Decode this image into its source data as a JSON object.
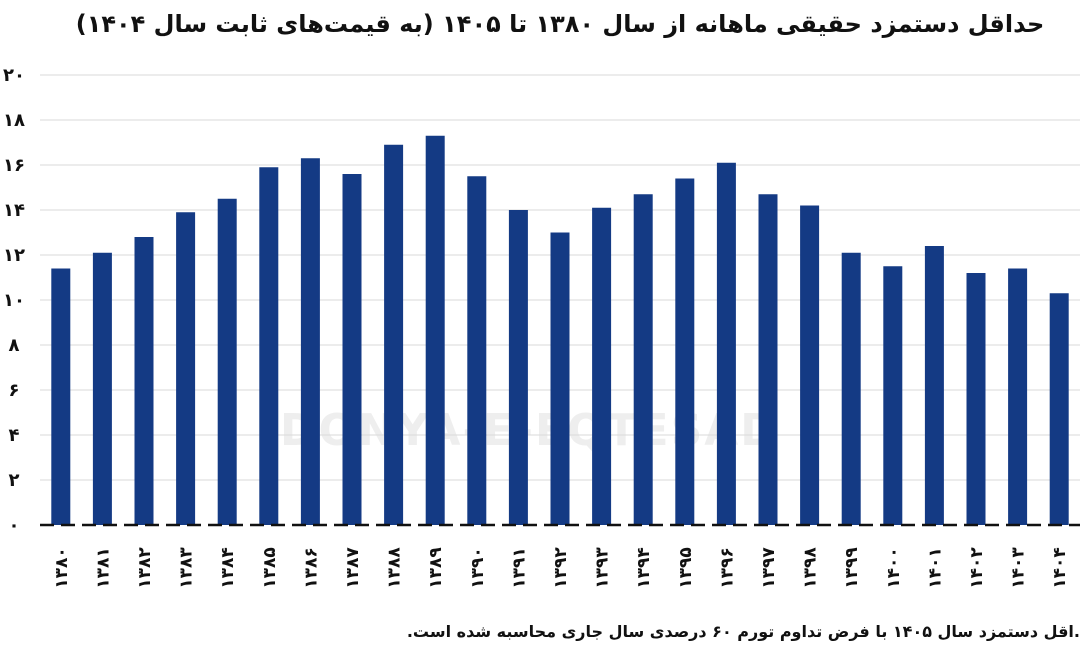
{
  "chart_data": {
    "type": "bar",
    "title": "حداقل دستمزد حقیقی ماهانه از سال ۱۳۸۰ تا ۱۴۰۵ (به قیمت‌های ثابت سال ۱۴۰۴)",
    "xlabel": "",
    "ylabel": "",
    "categories": [
      "۱۳۸۰",
      "۱۳۸۱",
      "۱۳۸۲",
      "۱۳۸۳",
      "۱۳۸۴",
      "۱۳۸۵",
      "۱۳۸۶",
      "۱۳۸۷",
      "۱۳۸۸",
      "۱۳۸۹",
      "۱۳۹۰",
      "۱۳۹۱",
      "۱۳۹۲",
      "۱۳۹۳",
      "۱۳۹۴",
      "۱۳۹۵",
      "۱۳۹۶",
      "۱۳۹۷",
      "۱۳۹۸",
      "۱۳۹۹",
      "۱۴۰۰",
      "۱۴۰۱",
      "۱۴۰۲",
      "۱۴۰۳",
      "۱۴۰۴"
    ],
    "values": [
      11.4,
      12.1,
      12.8,
      13.9,
      14.5,
      15.9,
      16.3,
      15.6,
      16.9,
      17.3,
      15.5,
      14.0,
      13.0,
      14.1,
      14.7,
      15.4,
      16.1,
      14.7,
      14.2,
      12.1,
      11.5,
      12.4,
      11.2,
      11.4,
      10.3
    ],
    "ylim": [
      0,
      20
    ],
    "yticks": [
      "۰",
      "۲",
      "۴",
      "۶",
      "۸",
      "۱۰",
      "۱۲",
      "۱۴",
      "۱۶",
      "۱۸",
      "۲۰"
    ],
    "bar_color": "#143a84",
    "grid": true
  },
  "watermark": "DONYA-E-EQTESAD",
  "footnote": ".اقل دستمزد سال ۱۴۰۵ با فرض تداوم تورم ۶۰ درصدی سال جاری محاسبه شده است."
}
